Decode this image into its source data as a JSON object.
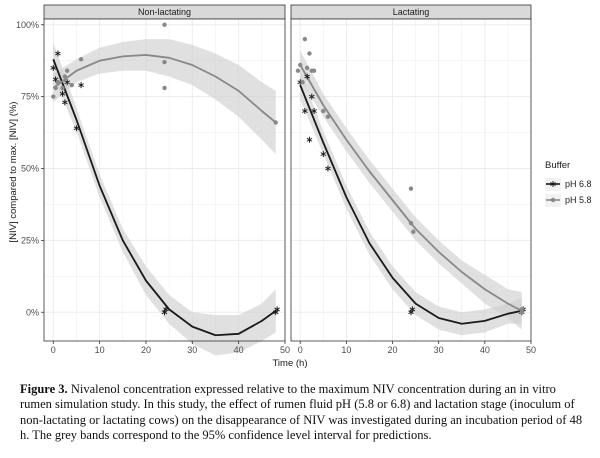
{
  "chart_data": {
    "type": "scatter",
    "facets": [
      "Non-lactating",
      "Lactating"
    ],
    "xlabel": "Time (h)",
    "ylabel": "[NIV] compared to max. [NIV] (%)",
    "xlim": [
      -2,
      50
    ],
    "ylim": [
      -10,
      102
    ],
    "x_ticks": [
      0,
      10,
      20,
      30,
      40,
      50
    ],
    "y_ticks": [
      0,
      25,
      50,
      75,
      100
    ],
    "y_tick_labels": [
      "0%",
      "25%",
      "50%",
      "75%",
      "100%"
    ],
    "legend": {
      "title": "Buffer",
      "placement": "right",
      "entries": [
        "pH 6.8",
        "pH 5.8"
      ]
    },
    "colors": {
      "ph68": "#1a1a1a",
      "ph58": "#888888",
      "band": "#cfcfcf",
      "panel": "#ffffff",
      "strip": "#d9d9d9",
      "grid": "#ebebeb",
      "border": "#333333"
    },
    "series": [
      {
        "facet": "Non-lactating",
        "buffer": "pH 6.8",
        "marker": "asterisk",
        "points": [
          [
            0,
            85
          ],
          [
            0.5,
            81
          ],
          [
            1,
            90
          ],
          [
            2,
            76
          ],
          [
            2.5,
            73
          ],
          [
            3,
            80
          ],
          [
            5,
            64
          ],
          [
            6,
            79
          ],
          [
            24,
            0
          ],
          [
            24.3,
            1
          ],
          [
            48,
            0
          ],
          [
            48.3,
            1
          ]
        ],
        "fit": [
          [
            0,
            88
          ],
          [
            5,
            67
          ],
          [
            10,
            44
          ],
          [
            15,
            25
          ],
          [
            20,
            11
          ],
          [
            25,
            1
          ],
          [
            30,
            -5
          ],
          [
            35,
            -8
          ],
          [
            40,
            -7.5
          ],
          [
            45,
            -3
          ],
          [
            48,
            0.5
          ]
        ],
        "band_upper": [
          [
            0,
            94
          ],
          [
            5,
            71
          ],
          [
            10,
            48
          ],
          [
            15,
            29
          ],
          [
            20,
            16
          ],
          [
            25,
            6
          ],
          [
            30,
            0
          ],
          [
            35,
            -1
          ],
          [
            40,
            -1
          ],
          [
            45,
            3
          ],
          [
            48,
            8
          ]
        ],
        "band_lower": [
          [
            0,
            82
          ],
          [
            5,
            63
          ],
          [
            10,
            40
          ],
          [
            15,
            21
          ],
          [
            20,
            6
          ],
          [
            25,
            -4
          ],
          [
            30,
            -11
          ],
          [
            35,
            -15
          ],
          [
            40,
            -14
          ],
          [
            45,
            -10
          ],
          [
            48,
            -7
          ]
        ]
      },
      {
        "facet": "Non-lactating",
        "buffer": "pH 5.8",
        "marker": "dot",
        "points": [
          [
            0,
            75
          ],
          [
            0.5,
            78
          ],
          [
            1,
            80
          ],
          [
            2,
            78
          ],
          [
            2.5,
            82
          ],
          [
            3,
            84
          ],
          [
            4,
            79
          ],
          [
            6,
            88
          ],
          [
            24,
            100
          ],
          [
            24,
            87
          ],
          [
            24,
            78
          ],
          [
            48,
            66
          ]
        ],
        "fit": [
          [
            0,
            78
          ],
          [
            5,
            84
          ],
          [
            10,
            87.5
          ],
          [
            15,
            89
          ],
          [
            20,
            89.5
          ],
          [
            25,
            88.5
          ],
          [
            30,
            86
          ],
          [
            35,
            82
          ],
          [
            40,
            77
          ],
          [
            45,
            70
          ],
          [
            48,
            66
          ]
        ],
        "band_upper": [
          [
            0,
            83
          ],
          [
            5,
            88
          ],
          [
            10,
            92
          ],
          [
            15,
            94
          ],
          [
            20,
            95
          ],
          [
            25,
            95
          ],
          [
            30,
            93
          ],
          [
            35,
            90
          ],
          [
            40,
            86
          ],
          [
            45,
            80
          ],
          [
            48,
            77
          ]
        ],
        "band_lower": [
          [
            0,
            73
          ],
          [
            5,
            80
          ],
          [
            10,
            83
          ],
          [
            15,
            84
          ],
          [
            20,
            84
          ],
          [
            25,
            82
          ],
          [
            30,
            79
          ],
          [
            35,
            74
          ],
          [
            40,
            68
          ],
          [
            45,
            60
          ],
          [
            48,
            55
          ]
        ]
      },
      {
        "facet": "Lactating",
        "buffer": "pH 6.8",
        "marker": "asterisk",
        "points": [
          [
            0,
            80
          ],
          [
            1,
            70
          ],
          [
            1.5,
            82
          ],
          [
            2,
            60
          ],
          [
            2.5,
            75
          ],
          [
            3,
            70
          ],
          [
            5,
            55
          ],
          [
            6,
            50
          ],
          [
            24,
            0
          ],
          [
            24.3,
            1
          ],
          [
            48,
            0
          ],
          [
            48.3,
            1
          ]
        ],
        "fit": [
          [
            0,
            79
          ],
          [
            5,
            59
          ],
          [
            10,
            40
          ],
          [
            15,
            24
          ],
          [
            20,
            12
          ],
          [
            25,
            3
          ],
          [
            30,
            -2
          ],
          [
            35,
            -4
          ],
          [
            40,
            -3
          ],
          [
            45,
            -0.5
          ],
          [
            48,
            0.5
          ]
        ],
        "band_upper": [
          [
            0,
            84
          ],
          [
            5,
            63
          ],
          [
            10,
            44
          ],
          [
            15,
            28
          ],
          [
            20,
            16
          ],
          [
            25,
            7
          ],
          [
            30,
            2
          ],
          [
            35,
            0
          ],
          [
            40,
            1
          ],
          [
            45,
            3
          ],
          [
            48,
            5
          ]
        ],
        "band_lower": [
          [
            0,
            74
          ],
          [
            5,
            55
          ],
          [
            10,
            36
          ],
          [
            15,
            20
          ],
          [
            20,
            8
          ],
          [
            25,
            -1
          ],
          [
            30,
            -6
          ],
          [
            35,
            -8
          ],
          [
            40,
            -7
          ],
          [
            45,
            -4
          ],
          [
            48,
            -4
          ]
        ]
      },
      {
        "facet": "Lactating",
        "buffer": "pH 5.8",
        "marker": "dot",
        "points": [
          [
            -0.5,
            84
          ],
          [
            0,
            86
          ],
          [
            0.5,
            80
          ],
          [
            1,
            95
          ],
          [
            1.5,
            85
          ],
          [
            2,
            90
          ],
          [
            2.5,
            84
          ],
          [
            3,
            84
          ],
          [
            5,
            70
          ],
          [
            6,
            68
          ],
          [
            24,
            43
          ],
          [
            24,
            31
          ],
          [
            24.5,
            28
          ],
          [
            48,
            0
          ],
          [
            48,
            1
          ]
        ],
        "fit": [
          [
            0,
            86
          ],
          [
            5,
            72
          ],
          [
            10,
            60
          ],
          [
            15,
            49
          ],
          [
            20,
            39
          ],
          [
            25,
            29
          ],
          [
            30,
            21
          ],
          [
            35,
            14
          ],
          [
            40,
            8
          ],
          [
            45,
            3
          ],
          [
            48,
            0.5
          ]
        ],
        "band_upper": [
          [
            0,
            91
          ],
          [
            5,
            76
          ],
          [
            10,
            64
          ],
          [
            15,
            53
          ],
          [
            20,
            43
          ],
          [
            25,
            33
          ],
          [
            30,
            25
          ],
          [
            35,
            18
          ],
          [
            40,
            13
          ],
          [
            45,
            8
          ],
          [
            48,
            7
          ]
        ],
        "band_lower": [
          [
            0,
            81
          ],
          [
            5,
            68
          ],
          [
            10,
            56
          ],
          [
            15,
            45
          ],
          [
            20,
            35
          ],
          [
            25,
            25
          ],
          [
            30,
            17
          ],
          [
            35,
            10
          ],
          [
            40,
            3
          ],
          [
            45,
            -2
          ],
          [
            48,
            -6
          ]
        ]
      }
    ]
  },
  "caption": {
    "label": "Figure 3.",
    "text": " Nivalenol concentration expressed relative to the maximum NIV concentration during an in vitro rumen simulation study. In this study, the effect of rumen fluid pH (5.8 or 6.8) and lactation stage (inoculum of non-lactating or lactating cows) on the disappearance of NIV was investigated during an incubation period of 48 h. The grey bands correspond to the 95% confidence level interval for predictions."
  }
}
